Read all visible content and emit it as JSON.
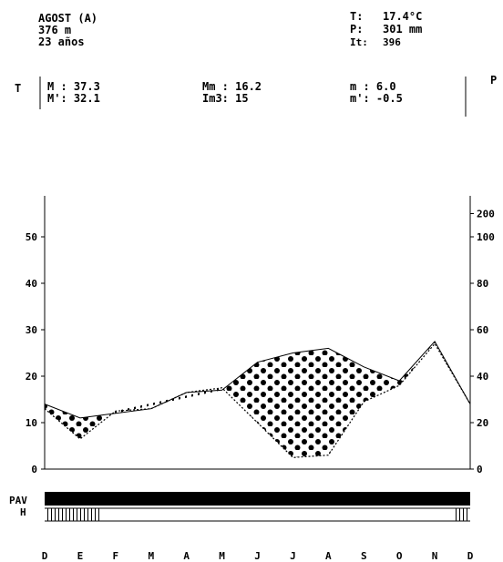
{
  "header": {
    "station": "AGOST (A)",
    "altitude": "376 m",
    "years": "23 años",
    "T_label": "T:",
    "T_value": "17.4°C",
    "P_label": "P:",
    "P_value": "301 mm",
    "It_label": "It:",
    "It_value": "396"
  },
  "stats": {
    "row_label_left": "T",
    "row_label_right": "P",
    "M": "M : 37.3",
    "M_prime": "M': 32.1",
    "Mm": "Mm : 16.2",
    "Im3": "Im3: 15",
    "m": "m : 6.0",
    "m_prime": "m': -0.5"
  },
  "chart_data": {
    "type": "line",
    "categories": [
      "D",
      "E",
      "F",
      "M",
      "A",
      "M",
      "J",
      "J",
      "A",
      "S",
      "O",
      "N",
      "D"
    ],
    "left_axis": {
      "ticks": [
        "0",
        "10",
        "20",
        "30",
        "40",
        "50"
      ],
      "ylim": [
        0,
        60
      ]
    },
    "right_axis": {
      "ticks": [
        "0",
        "20",
        "40",
        "60",
        "80",
        "100",
        "200"
      ]
    },
    "series": [
      {
        "values": [
          14,
          11,
          12,
          13,
          16.5,
          17,
          23,
          25,
          26,
          22,
          19,
          27.5,
          14
        ]
      },
      {
        "values": [
          13,
          6.5,
          12.5,
          13,
          16.5,
          17.5,
          10,
          2.5,
          3,
          14.5,
          18,
          27,
          14
        ]
      }
    ],
    "frost_rows": {
      "PAV": "PAV",
      "H": "H"
    },
    "colors": {
      "ink": "#000000",
      "paper": "#ffffff"
    }
  }
}
